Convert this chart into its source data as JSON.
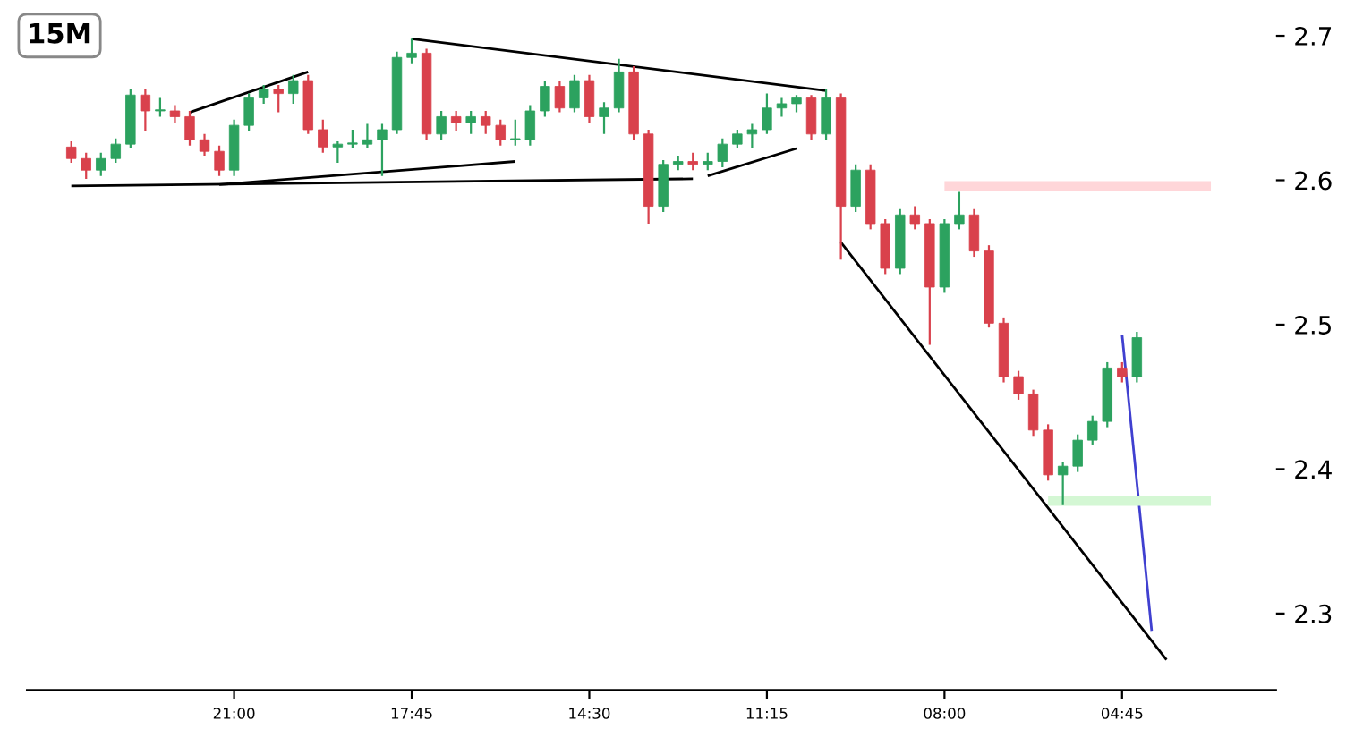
{
  "chart_data": {
    "type": "candlestick",
    "title": "15M",
    "categories": [
      null,
      null,
      null,
      null,
      null,
      null,
      null,
      null,
      null,
      null,
      null,
      "21:00",
      null,
      null,
      null,
      null,
      null,
      null,
      null,
      null,
      null,
      null,
      null,
      "17:45",
      null,
      null,
      null,
      null,
      null,
      null,
      null,
      null,
      null,
      null,
      null,
      "14:30",
      null,
      null,
      null,
      null,
      null,
      null,
      null,
      null,
      null,
      null,
      null,
      "11:15",
      null,
      null,
      null,
      null,
      null,
      null,
      null,
      null,
      null,
      null,
      null,
      "08:00",
      null,
      null,
      null,
      null,
      null,
      null,
      null,
      null,
      null,
      null,
      null,
      "04:45",
      null,
      null,
      null,
      null,
      null,
      null
    ],
    "ohlc": [
      [
        2.623,
        2.627,
        2.612,
        2.615
      ],
      [
        2.615,
        2.619,
        2.601,
        2.607
      ],
      [
        2.607,
        2.619,
        2.603,
        2.615
      ],
      [
        2.615,
        2.629,
        2.612,
        2.625
      ],
      [
        2.625,
        2.663,
        2.622,
        2.659
      ],
      [
        2.659,
        2.663,
        2.634,
        2.648
      ],
      [
        2.648,
        2.657,
        2.644,
        2.648
      ],
      [
        2.648,
        2.652,
        2.64,
        2.644
      ],
      [
        2.644,
        2.648,
        2.624,
        2.628
      ],
      [
        2.628,
        2.632,
        2.617,
        2.62
      ],
      [
        2.62,
        2.624,
        2.603,
        2.607
      ],
      [
        2.607,
        2.642,
        2.603,
        2.638
      ],
      [
        2.638,
        2.66,
        2.634,
        2.657
      ],
      [
        2.657,
        2.666,
        2.653,
        2.663
      ],
      [
        2.663,
        2.666,
        2.647,
        2.66
      ],
      [
        2.66,
        2.673,
        2.653,
        2.669
      ],
      [
        2.669,
        2.673,
        2.632,
        2.635
      ],
      [
        2.635,
        2.642,
        2.619,
        2.623
      ],
      [
        2.623,
        2.627,
        2.612,
        2.625
      ],
      [
        2.625,
        2.635,
        2.622,
        2.625
      ],
      [
        2.625,
        2.639,
        2.622,
        2.628
      ],
      [
        2.628,
        2.639,
        2.603,
        2.635
      ],
      [
        2.635,
        2.689,
        2.632,
        2.685
      ],
      [
        2.685,
        2.698,
        2.681,
        2.688
      ],
      [
        2.688,
        2.691,
        2.628,
        2.632
      ],
      [
        2.632,
        2.648,
        2.628,
        2.644
      ],
      [
        2.644,
        2.648,
        2.634,
        2.64
      ],
      [
        2.64,
        2.648,
        2.632,
        2.644
      ],
      [
        2.644,
        2.648,
        2.632,
        2.638
      ],
      [
        2.638,
        2.642,
        2.624,
        2.628
      ],
      [
        2.628,
        2.642,
        2.624,
        2.628
      ],
      [
        2.628,
        2.652,
        2.624,
        2.648
      ],
      [
        2.648,
        2.669,
        2.644,
        2.665
      ],
      [
        2.665,
        2.669,
        2.647,
        2.65
      ],
      [
        2.65,
        2.673,
        2.647,
        2.669
      ],
      [
        2.669,
        2.673,
        2.64,
        2.644
      ],
      [
        2.644,
        2.654,
        2.632,
        2.65
      ],
      [
        2.65,
        2.684,
        2.647,
        2.675
      ],
      [
        2.675,
        2.679,
        2.628,
        2.632
      ],
      [
        2.632,
        2.635,
        2.57,
        2.582
      ],
      [
        2.582,
        2.614,
        2.578,
        2.611
      ],
      [
        2.611,
        2.617,
        2.607,
        2.613
      ],
      [
        2.613,
        2.619,
        2.607,
        2.611
      ],
      [
        2.611,
        2.619,
        2.607,
        2.613
      ],
      [
        2.613,
        2.629,
        2.609,
        2.625
      ],
      [
        2.625,
        2.635,
        2.622,
        2.632
      ],
      [
        2.632,
        2.639,
        2.622,
        2.635
      ],
      [
        2.635,
        2.66,
        2.632,
        2.65
      ],
      [
        2.65,
        2.657,
        2.644,
        2.653
      ],
      [
        2.653,
        2.659,
        2.647,
        2.657
      ],
      [
        2.657,
        2.659,
        2.628,
        2.632
      ],
      [
        2.632,
        2.663,
        2.628,
        2.657
      ],
      [
        2.657,
        2.66,
        2.545,
        2.582
      ],
      [
        2.582,
        2.611,
        2.578,
        2.607
      ],
      [
        2.607,
        2.611,
        2.566,
        2.57
      ],
      [
        2.57,
        2.573,
        2.535,
        2.539
      ],
      [
        2.539,
        2.58,
        2.535,
        2.576
      ],
      [
        2.576,
        2.582,
        2.566,
        2.57
      ],
      [
        2.57,
        2.573,
        2.486,
        2.526
      ],
      [
        2.526,
        2.573,
        2.522,
        2.57
      ],
      [
        2.57,
        2.592,
        2.566,
        2.576
      ],
      [
        2.576,
        2.58,
        2.547,
        2.551
      ],
      [
        2.551,
        2.555,
        2.498,
        2.501
      ],
      [
        2.501,
        2.505,
        2.46,
        2.464
      ],
      [
        2.464,
        2.468,
        2.448,
        2.452
      ],
      [
        2.452,
        2.455,
        2.423,
        2.427
      ],
      [
        2.427,
        2.431,
        2.392,
        2.396
      ],
      [
        2.396,
        2.405,
        2.375,
        2.402
      ],
      [
        2.402,
        2.424,
        2.398,
        2.42
      ],
      [
        2.42,
        2.437,
        2.417,
        2.433
      ],
      [
        2.433,
        2.474,
        2.429,
        2.47
      ],
      [
        2.47,
        2.474,
        2.46,
        2.464
      ],
      [
        2.464,
        2.495,
        2.46,
        2.491
      ],
      null,
      null,
      null,
      null,
      null
    ],
    "colors": [
      "#d9414c",
      "#d9414c",
      "#2ca25f",
      "#2ca25f",
      "#2ca25f",
      "#d9414c",
      "#2ca25f",
      "#d9414c",
      "#d9414c",
      "#d9414c",
      "#d9414c",
      "#2ca25f",
      "#2ca25f",
      "#2ca25f",
      "#d9414c",
      "#2ca25f",
      "#d9414c",
      "#d9414c",
      "#2ca25f",
      "#2ca25f",
      "#2ca25f",
      "#2ca25f",
      "#2ca25f",
      "#2ca25f",
      "#d9414c",
      "#2ca25f",
      "#d9414c",
      "#2ca25f",
      "#d9414c",
      "#d9414c",
      "#2ca25f",
      "#2ca25f",
      "#2ca25f",
      "#d9414c",
      "#2ca25f",
      "#d9414c",
      "#2ca25f",
      "#2ca25f",
      "#d9414c",
      "#d9414c",
      "#2ca25f",
      "#2ca25f",
      "#d9414c",
      "#2ca25f",
      "#2ca25f",
      "#2ca25f",
      "#2ca25f",
      "#2ca25f",
      "#2ca25f",
      "#2ca25f",
      "#d9414c",
      "#2ca25f",
      "#d9414c",
      "#2ca25f",
      "#d9414c",
      "#d9414c",
      "#2ca25f",
      "#d9414c",
      "#d9414c",
      "#2ca25f",
      "#2ca25f",
      "#d9414c",
      "#d9414c",
      "#d9414c",
      "#d9414c",
      "#d9414c",
      "#d9414c",
      "#2ca25f",
      "#2ca25f",
      "#2ca25f",
      "#2ca25f",
      "#d9414c",
      "#2ca25f",
      null,
      null,
      null,
      null,
      null
    ],
    "series": [
      {
        "type": "line",
        "color": "#000000",
        "values": [
          2.596,
          null,
          null,
          null,
          null,
          null,
          null,
          null,
          null,
          null,
          null,
          null,
          null,
          null,
          null,
          null,
          null,
          null,
          null,
          null,
          null,
          null,
          null,
          null,
          null,
          null,
          null,
          null,
          null,
          null,
          null,
          null,
          null,
          null,
          null,
          null,
          null,
          null,
          null,
          null,
          null,
          null,
          2.601,
          null,
          null,
          null,
          null,
          null,
          null,
          null,
          null,
          null,
          null,
          null,
          null,
          null,
          null,
          null,
          null,
          null,
          null,
          null,
          null,
          null,
          null,
          null,
          null,
          null,
          null,
          null,
          null,
          null,
          null,
          null,
          null,
          null,
          null,
          null
        ]
      },
      {
        "type": "line",
        "color": "#000000",
        "values": [
          null,
          null,
          null,
          null,
          null,
          null,
          null,
          null,
          2.647,
          null,
          null,
          null,
          null,
          null,
          null,
          null,
          2.675,
          null,
          null,
          null,
          null,
          null,
          null,
          null,
          null,
          null,
          null,
          null,
          null,
          null,
          null,
          null,
          null,
          null,
          null,
          null,
          null,
          null,
          null,
          null,
          null,
          null,
          null,
          null,
          null,
          null,
          null,
          null,
          null,
          null,
          null,
          null,
          null,
          null,
          null,
          null,
          null,
          null,
          null,
          null,
          null,
          null,
          null,
          null,
          null,
          null,
          null,
          null,
          null,
          null,
          null,
          null,
          null,
          null,
          null,
          null,
          null,
          null
        ]
      },
      {
        "type": "line",
        "color": "#000000",
        "values": [
          null,
          null,
          null,
          null,
          null,
          null,
          null,
          null,
          null,
          null,
          2.597,
          null,
          null,
          null,
          null,
          null,
          null,
          null,
          null,
          null,
          null,
          null,
          null,
          null,
          null,
          null,
          null,
          null,
          null,
          null,
          2.613,
          null,
          null,
          null,
          null,
          null,
          null,
          null,
          null,
          null,
          null,
          null,
          null,
          null,
          null,
          null,
          null,
          null,
          null,
          null,
          null,
          null,
          null,
          null,
          null,
          null,
          null,
          null,
          null,
          null,
          null,
          null,
          null,
          null,
          null,
          null,
          null,
          null,
          null,
          null,
          null,
          null,
          null,
          null,
          null,
          null,
          null,
          null
        ]
      },
      {
        "type": "line",
        "color": "#000000",
        "values": [
          null,
          null,
          null,
          null,
          null,
          null,
          null,
          null,
          null,
          null,
          null,
          null,
          null,
          null,
          null,
          null,
          null,
          null,
          null,
          null,
          null,
          null,
          null,
          2.698,
          null,
          null,
          null,
          null,
          null,
          null,
          null,
          null,
          null,
          null,
          null,
          null,
          null,
          null,
          null,
          null,
          null,
          null,
          null,
          null,
          null,
          null,
          null,
          null,
          null,
          null,
          null,
          2.662,
          null,
          null,
          null,
          null,
          null,
          null,
          null,
          null,
          null,
          null,
          null,
          null,
          null,
          null,
          null,
          null,
          null,
          null,
          null,
          null,
          null,
          null,
          null,
          null,
          null,
          null
        ]
      },
      {
        "type": "line",
        "color": "#000000",
        "values": [
          null,
          null,
          null,
          null,
          null,
          null,
          null,
          null,
          null,
          null,
          null,
          null,
          null,
          null,
          null,
          null,
          null,
          null,
          null,
          null,
          null,
          null,
          null,
          null,
          null,
          null,
          null,
          null,
          null,
          null,
          null,
          null,
          null,
          null,
          null,
          null,
          null,
          null,
          null,
          null,
          null,
          null,
          null,
          2.603,
          null,
          null,
          null,
          null,
          null,
          2.622,
          null,
          null,
          null,
          null,
          null,
          null,
          null,
          null,
          null,
          null,
          null,
          null,
          null,
          null,
          null,
          null,
          null,
          null,
          null,
          null,
          null,
          null,
          null,
          null,
          null,
          null,
          null,
          null
        ]
      },
      {
        "type": "line",
        "color": "#000000",
        "values": [
          null,
          null,
          null,
          null,
          null,
          null,
          null,
          null,
          null,
          null,
          null,
          null,
          null,
          null,
          null,
          null,
          null,
          null,
          null,
          null,
          null,
          null,
          null,
          null,
          null,
          null,
          null,
          null,
          null,
          null,
          null,
          null,
          null,
          null,
          null,
          null,
          null,
          null,
          null,
          null,
          null,
          null,
          null,
          null,
          null,
          null,
          null,
          null,
          null,
          null,
          null,
          null,
          2.557,
          null,
          null,
          null,
          null,
          null,
          null,
          null,
          null,
          null,
          null,
          null,
          null,
          null,
          null,
          null,
          null,
          null,
          null,
          null,
          null,
          null,
          2.268,
          null,
          null,
          null
        ]
      },
      {
        "type": "line",
        "color": "#4040d0",
        "values": [
          null,
          null,
          null,
          null,
          null,
          null,
          null,
          null,
          null,
          null,
          null,
          null,
          null,
          null,
          null,
          null,
          null,
          null,
          null,
          null,
          null,
          null,
          null,
          null,
          null,
          null,
          null,
          null,
          null,
          null,
          null,
          null,
          null,
          null,
          null,
          null,
          null,
          null,
          null,
          null,
          null,
          null,
          null,
          null,
          null,
          null,
          null,
          null,
          null,
          null,
          null,
          null,
          null,
          null,
          null,
          null,
          null,
          null,
          null,
          null,
          null,
          null,
          null,
          null,
          null,
          null,
          null,
          null,
          null,
          null,
          null,
          2.493,
          null,
          2.288,
          null,
          null,
          null,
          null
        ]
      },
      {
        "type": "line",
        "color": "#ffd6d9",
        "values": [
          null,
          null,
          null,
          null,
          null,
          null,
          null,
          null,
          null,
          null,
          null,
          null,
          null,
          null,
          null,
          null,
          null,
          null,
          null,
          null,
          null,
          null,
          null,
          null,
          null,
          null,
          null,
          null,
          null,
          null,
          null,
          null,
          null,
          null,
          null,
          null,
          null,
          null,
          null,
          null,
          null,
          null,
          null,
          null,
          null,
          null,
          null,
          null,
          null,
          null,
          null,
          null,
          null,
          null,
          null,
          null,
          null,
          null,
          null,
          2.596,
          null,
          null,
          null,
          null,
          null,
          null,
          null,
          null,
          null,
          null,
          null,
          null,
          null,
          null,
          null,
          null,
          null,
          2.596
        ]
      },
      {
        "type": "line",
        "color": "#d4f7d4",
        "values": [
          null,
          null,
          null,
          null,
          null,
          null,
          null,
          null,
          null,
          null,
          null,
          null,
          null,
          null,
          null,
          null,
          null,
          null,
          null,
          null,
          null,
          null,
          null,
          null,
          null,
          null,
          null,
          null,
          null,
          null,
          null,
          null,
          null,
          null,
          null,
          null,
          null,
          null,
          null,
          null,
          null,
          null,
          null,
          null,
          null,
          null,
          null,
          null,
          null,
          null,
          null,
          null,
          null,
          null,
          null,
          null,
          null,
          null,
          null,
          null,
          null,
          null,
          null,
          null,
          null,
          null,
          2.378,
          null,
          null,
          null,
          null,
          null,
          null,
          null,
          null,
          null,
          null,
          2.378
        ]
      }
    ],
    "ylim": [
      2.247,
      2.7
    ],
    "yticks": [
      2.3,
      2.4,
      2.5,
      2.6,
      2.7
    ]
  }
}
